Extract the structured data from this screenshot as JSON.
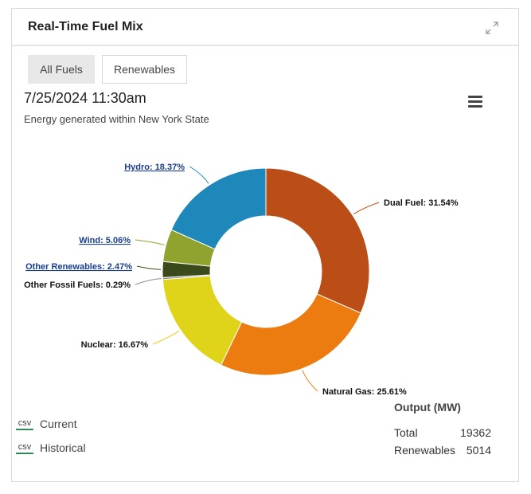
{
  "header": {
    "title": "Real-Time Fuel Mix"
  },
  "tabs": [
    {
      "label": "All Fuels"
    },
    {
      "label": "Renewables"
    }
  ],
  "chart_heading": {
    "date": "7/25/2024 11:30am",
    "subtitle": "Energy generated within New York State"
  },
  "chart_data": {
    "type": "pie",
    "donut": true,
    "categories": [
      "Dual Fuel",
      "Natural Gas",
      "Nuclear",
      "Other Fossil Fuels",
      "Other Renewables",
      "Wind",
      "Hydro"
    ],
    "values": [
      31.54,
      25.61,
      16.67,
      0.29,
      2.47,
      5.06,
      18.37
    ],
    "labels": [
      "Dual Fuel: 31.54%",
      "Natural Gas: 25.61%",
      "Nuclear: 16.67%",
      "Other Fossil Fuels: 0.29%",
      "Other Renewables: 2.47%",
      "Wind: 5.06%",
      "Hydro: 18.37%"
    ],
    "colors": [
      "#bb4e16",
      "#ec7c10",
      "#e0d41a",
      "#8a8a8a",
      "#3b4a1a",
      "#8fa32e",
      "#1f88bb"
    ],
    "linked": [
      false,
      false,
      false,
      false,
      true,
      true,
      true
    ]
  },
  "downloads": [
    {
      "icon": "csv",
      "label": "Current"
    },
    {
      "icon": "csv",
      "label": "Historical"
    }
  ],
  "output": {
    "title": "Output (MW)",
    "rows": [
      {
        "label": "Total",
        "value": "19362"
      },
      {
        "label": "Renewables",
        "value": "5014"
      }
    ]
  }
}
